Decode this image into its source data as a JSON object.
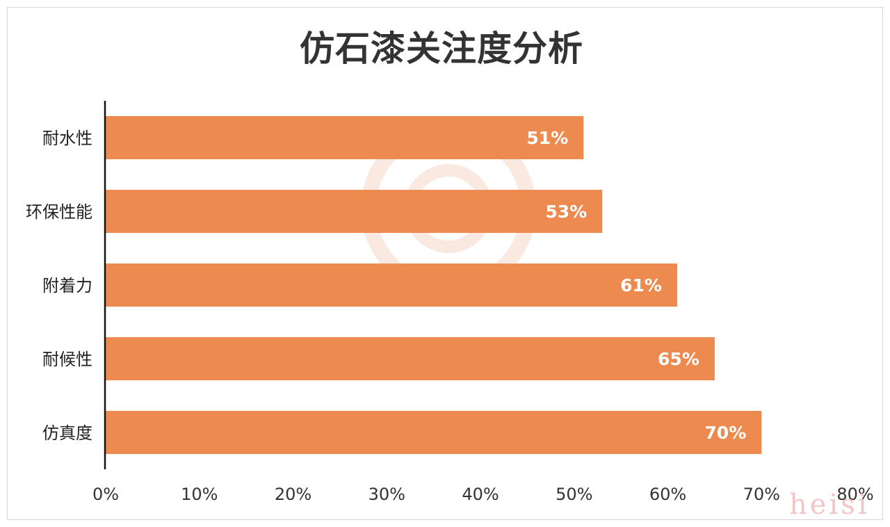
{
  "chart_data": {
    "type": "bar",
    "orientation": "horizontal",
    "title": "仿石漆关注度分析",
    "categories": [
      "耐水性",
      "环保性能",
      "附着力",
      "耐候性",
      "仿真度"
    ],
    "values": [
      51,
      53,
      61,
      65,
      70
    ],
    "data_labels": [
      "51%",
      "53%",
      "61%",
      "65%",
      "70%"
    ],
    "xlim": [
      0,
      80
    ],
    "x_ticks": [
      "0%",
      "10%",
      "20%",
      "30%",
      "40%",
      "50%",
      "60%",
      "70%",
      "80%"
    ],
    "bar_color": "#ed8a4f",
    "grid": false,
    "legend": "none"
  },
  "watermark": "heisi"
}
